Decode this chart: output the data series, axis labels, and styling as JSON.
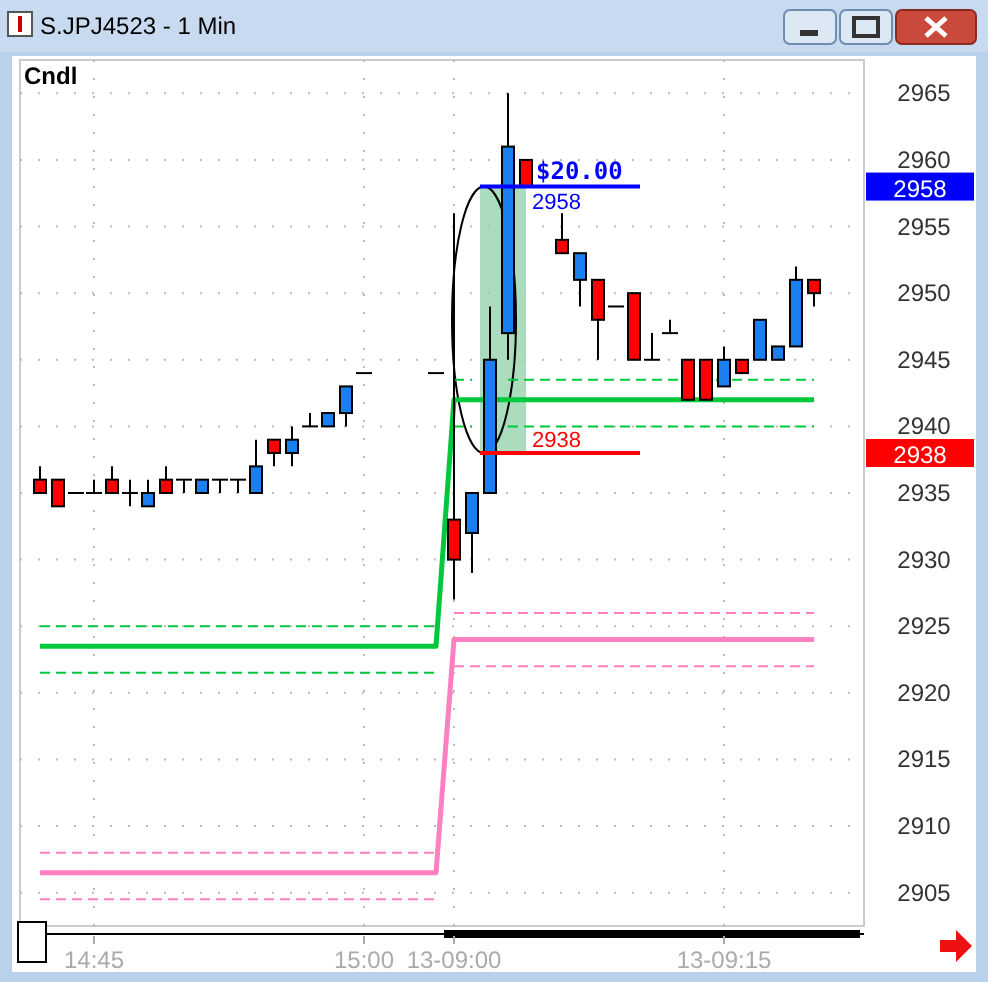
{
  "chart_data": {
    "type": "candlestick",
    "title": "S.JPJ4523 - 1 Min",
    "subtitle": "Cndl",
    "categories": [
      null,
      null,
      null,
      "14:45",
      null,
      null,
      null,
      null,
      null,
      null,
      null,
      null,
      null,
      null,
      null,
      null,
      null,
      null,
      "15:00",
      null,
      null,
      null,
      null,
      "13-09:00",
      null,
      null,
      null,
      null,
      null,
      null,
      null,
      null,
      null,
      null,
      null,
      null,
      null,
      null,
      "13-09:15",
      null,
      null,
      null,
      null,
      null
    ],
    "ohlc": [
      [
        2936,
        2937,
        2935,
        2935
      ],
      [
        2936,
        2936,
        2934,
        2934
      ],
      [
        2935,
        2935,
        2935,
        2935
      ],
      [
        2935,
        2936,
        2935,
        2935
      ],
      [
        2936,
        2937,
        2935,
        2935
      ],
      [
        2935,
        2936,
        2934,
        2935
      ],
      [
        2934,
        2936,
        2934,
        2935
      ],
      [
        2936,
        2937,
        2935,
        2935
      ],
      [
        2936,
        2936,
        2935,
        2936
      ],
      [
        2935,
        2936,
        2935,
        2936
      ],
      [
        2936,
        2936,
        2935,
        2936
      ],
      [
        2936,
        2936,
        2935,
        2936
      ],
      [
        2935,
        2939,
        2935,
        2937
      ],
      [
        2939,
        2939,
        2937,
        2938
      ],
      [
        2938,
        2940,
        2937,
        2939
      ],
      [
        2940,
        2941,
        2940,
        2940
      ],
      [
        2940,
        2941,
        2940,
        2941
      ],
      [
        2941,
        2943,
        2940,
        2943
      ],
      [
        2944,
        2944,
        2944,
        2944
      ],
      null,
      null,
      null,
      [
        2944,
        2944,
        2944,
        2944
      ],
      [
        2933,
        2956,
        2927,
        2930
      ],
      [
        2932,
        2935,
        2929,
        2935
      ],
      [
        2935,
        2949,
        2935,
        2945
      ],
      [
        2947,
        2965,
        2945,
        2961
      ],
      [
        2960,
        2960,
        2958,
        2958
      ],
      null,
      [
        2954,
        2956,
        2953,
        2953
      ],
      [
        2951,
        2953,
        2949,
        2953
      ],
      [
        2951,
        2951,
        2945,
        2948
      ],
      [
        2949,
        2949,
        2949,
        2949
      ],
      [
        2950,
        2950,
        2945,
        2945
      ],
      [
        2945,
        2947,
        2945,
        2945
      ],
      [
        2947,
        2948,
        2947,
        2947
      ],
      [
        2945,
        2945,
        2942,
        2942
      ],
      [
        2945,
        2945,
        2942,
        2942
      ],
      [
        2943,
        2946,
        2943,
        2945
      ],
      [
        2945,
        2945,
        2944,
        2944
      ],
      [
        2945,
        2948,
        2945,
        2948
      ],
      [
        2945,
        2946,
        2945,
        2946
      ],
      [
        2946,
        2952,
        2946,
        2951
      ],
      [
        2951,
        2951,
        2949,
        2950
      ]
    ],
    "colors": [
      "#ff0000",
      "#ff0000",
      "#000000",
      "#000000",
      "#ff0000",
      "#000000",
      "#1a7ff0",
      "#ff0000",
      "#000000",
      "#1a7ff0",
      "#000000",
      "#000000",
      "#1a7ff0",
      "#ff0000",
      "#1a7ff0",
      "#000000",
      "#1a7ff0",
      "#1a7ff0",
      "#000000",
      null,
      null,
      null,
      "#000000",
      "#ff0000",
      "#1a7ff0",
      "#1a7ff0",
      "#1a7ff0",
      "#ff0000",
      null,
      "#ff0000",
      "#1a7ff0",
      "#ff0000",
      "#000000",
      "#ff0000",
      "#000000",
      "#000000",
      "#ff0000",
      "#ff0000",
      "#1a7ff0",
      "#ff0000",
      "#1a7ff0",
      "#1a7ff0",
      "#1a7ff0",
      "#ff0000"
    ],
    "series": [
      {
        "type": "line",
        "color": "#00c83c",
        "line_style": "solid",
        "values": [
          2923.5,
          2923.5,
          2923.5,
          2923.5,
          2923.5,
          2923.5,
          2923.5,
          2923.5,
          2923.5,
          2923.5,
          2923.5,
          2923.5,
          2923.5,
          2923.5,
          2923.5,
          2923.5,
          2923.5,
          2923.5,
          2923.5,
          2923.5,
          2923.5,
          2923.5,
          2923.5,
          2942,
          2942,
          2942,
          2942,
          2942,
          2942,
          2942,
          2942,
          2942,
          2942,
          2942,
          2942,
          2942,
          2942,
          2942,
          2942,
          2942,
          2942,
          2942,
          2942,
          2942
        ]
      },
      {
        "type": "line",
        "color": "#ff80c0",
        "line_style": "solid",
        "values": [
          2906.5,
          2906.5,
          2906.5,
          2906.5,
          2906.5,
          2906.5,
          2906.5,
          2906.5,
          2906.5,
          2906.5,
          2906.5,
          2906.5,
          2906.5,
          2906.5,
          2906.5,
          2906.5,
          2906.5,
          2906.5,
          2906.5,
          2906.5,
          2906.5,
          2906.5,
          2906.5,
          2924,
          2924,
          2924,
          2924,
          2924,
          2924,
          2924,
          2924,
          2924,
          2924,
          2924,
          2924,
          2924,
          2924,
          2924,
          2924,
          2924,
          2924,
          2924,
          2924,
          2924
        ]
      },
      {
        "type": "line",
        "color": "#00c83c",
        "line_style": "dashed",
        "values": [
          2925,
          2925,
          2925,
          2925,
          2925,
          2925,
          2925,
          2925,
          2925,
          2925,
          2925,
          2925,
          2925,
          2925,
          2925,
          2925,
          2925,
          2925,
          2925,
          2925,
          2925,
          2925,
          2925,
          null,
          null,
          null,
          null,
          null,
          null,
          null,
          null,
          null,
          null,
          null,
          null,
          null,
          null,
          null,
          null,
          null,
          null,
          null,
          null,
          null
        ]
      },
      {
        "type": "line",
        "color": "#00c83c",
        "line_style": "dashed",
        "values": [
          2921.5,
          2921.5,
          2921.5,
          2921.5,
          2921.5,
          2921.5,
          2921.5,
          2921.5,
          2921.5,
          2921.5,
          2921.5,
          2921.5,
          2921.5,
          2921.5,
          2921.5,
          2921.5,
          2921.5,
          2921.5,
          2921.5,
          2921.5,
          2921.5,
          2921.5,
          2921.5,
          null,
          null,
          null,
          null,
          null,
          null,
          null,
          null,
          null,
          null,
          null,
          null,
          null,
          null,
          null,
          null,
          null,
          null,
          null,
          null,
          null
        ]
      },
      {
        "type": "line",
        "color": "#00c83c",
        "line_style": "dashed",
        "values": [
          null,
          null,
          null,
          null,
          null,
          null,
          null,
          null,
          null,
          null,
          null,
          null,
          null,
          null,
          null,
          null,
          null,
          null,
          null,
          null,
          null,
          null,
          null,
          2943.5,
          2943.5,
          null,
          2943.5,
          2943.5,
          2943.5,
          2943.5,
          2943.5,
          2943.5,
          2943.5,
          2943.5,
          2943.5,
          2943.5,
          2943.5,
          2943.5,
          2943.5,
          2943.5,
          2943.5,
          2943.5,
          2943.5,
          2943.5
        ]
      },
      {
        "type": "line",
        "color": "#00c83c",
        "line_style": "dashed",
        "values": [
          null,
          null,
          null,
          null,
          null,
          null,
          null,
          null,
          null,
          null,
          null,
          null,
          null,
          null,
          null,
          null,
          null,
          null,
          null,
          null,
          null,
          null,
          null,
          2940,
          2940,
          null,
          2940,
          2940,
          2940,
          2940,
          2940,
          2940,
          2940,
          2940,
          2940,
          2940,
          2940,
          2940,
          2940,
          2940,
          2940,
          2940,
          2940,
          2940
        ]
      },
      {
        "type": "line",
        "color": "#ff80c0",
        "line_style": "dashed",
        "values": [
          2908,
          2908,
          2908,
          2908,
          2908,
          2908,
          2908,
          2908,
          2908,
          2908,
          2908,
          2908,
          2908,
          2908,
          2908,
          2908,
          2908,
          2908,
          2908,
          2908,
          2908,
          2908,
          2908,
          null,
          null,
          null,
          null,
          null,
          null,
          null,
          null,
          null,
          null,
          null,
          null,
          null,
          null,
          null,
          null,
          null,
          null,
          null,
          null,
          null
        ]
      },
      {
        "type": "line",
        "color": "#ff80c0",
        "line_style": "dashed",
        "values": [
          2904.5,
          2904.5,
          2904.5,
          2904.5,
          2904.5,
          2904.5,
          2904.5,
          2904.5,
          2904.5,
          2904.5,
          2904.5,
          2904.5,
          2904.5,
          2904.5,
          2904.5,
          2904.5,
          2904.5,
          2904.5,
          2904.5,
          2904.5,
          2904.5,
          2904.5,
          2904.5,
          null,
          null,
          null,
          null,
          null,
          null,
          null,
          null,
          null,
          null,
          null,
          null,
          null,
          null,
          null,
          null,
          null,
          null,
          null,
          null,
          null
        ]
      },
      {
        "type": "line",
        "color": "#ff80c0",
        "line_style": "dashed",
        "values": [
          null,
          null,
          null,
          null,
          null,
          null,
          null,
          null,
          null,
          null,
          null,
          null,
          null,
          null,
          null,
          null,
          null,
          null,
          null,
          null,
          null,
          null,
          null,
          2926,
          2926,
          2926,
          2926,
          2926,
          2926,
          2926,
          2926,
          2926,
          2926,
          2926,
          2926,
          2926,
          2926,
          2926,
          2926,
          2926,
          2926,
          2926,
          2926,
          2926
        ]
      },
      {
        "type": "line",
        "color": "#ff80c0",
        "line_style": "dashed",
        "values": [
          null,
          null,
          null,
          null,
          null,
          null,
          null,
          null,
          null,
          null,
          null,
          null,
          null,
          null,
          null,
          null,
          null,
          null,
          null,
          null,
          null,
          null,
          null,
          2922,
          2922,
          2922,
          2922,
          2922,
          2922,
          2922,
          2922,
          2922,
          2922,
          2922,
          2922,
          2922,
          2922,
          2922,
          2922,
          2922,
          2922,
          2922,
          2922,
          2922
        ]
      }
    ],
    "ref_lines": [
      {
        "axis": "y",
        "value": 2958,
        "label": "2958",
        "color": "#0000ff"
      },
      {
        "axis": "y",
        "value": 2938,
        "label": "2938",
        "color": "#ff0000"
      }
    ],
    "bands": [
      {
        "axis": "y",
        "from": 2938,
        "to": 2958,
        "color": "#8fd0a8"
      }
    ],
    "annotations": [
      "$20.00"
    ],
    "ylim": [
      2902.5,
      2967.5
    ],
    "yticks": [
      2905,
      2910,
      2915,
      2920,
      2925,
      2930,
      2935,
      2940,
      2945,
      2950,
      2955,
      2960,
      2965
    ],
    "grid": true
  }
}
